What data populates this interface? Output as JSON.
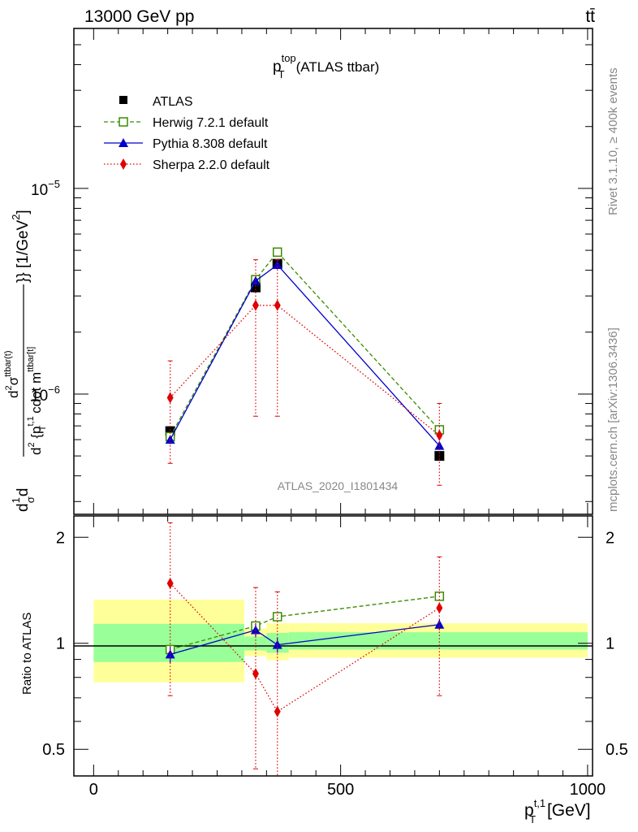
{
  "header": {
    "energy_label": "13000 GeV pp",
    "process_label": "tt̄"
  },
  "side_labels": {
    "rivet": "Rivet 3.1.10, ≥ 400k events",
    "mcplots": "mcplots.cern.ch [arXiv:1306.3436]"
  },
  "chart_data": [
    {
      "type": "line",
      "title_main": "p",
      "title_sup": "top",
      "title_sub": "T",
      "title_suffix": "(ATLAS ttbar)",
      "watermark": "ATLAS_2020_I1801434",
      "ylabel": "d1dσdσd²σ^{ttbar(t)} / d² {p_T^{t,1} cdot m^{ttbar[t]}} [1/GeV²]",
      "ylabel_parts": {
        "d1": "d",
        "frac_num": "1",
        "frac_den": "σ",
        "d2": "d",
        "num": "d",
        "num_sup": "2",
        "num_sigma": "σ",
        "num_sigma_sup": "ttbar(t)",
        "den": "d",
        "den_sup": "2",
        "den_body": " {p",
        "den_pt_sup": "t,1",
        "den_pt_sub": "T",
        "den_tail": " cdot m",
        "den_m_sup": "ttbar[t]",
        "den_close": "}}",
        "unit": " [1/GeV",
        "unit_sup": "2",
        "unit_close": "]"
      },
      "y_scale": "log",
      "ylim": [
        2.6e-07,
        6e-05
      ],
      "xlim": [
        -40,
        1010
      ],
      "y_tick_labels": [
        {
          "value": 1e-06,
          "base": "10",
          "exp": "−6"
        },
        {
          "value": 1e-05,
          "base": "10",
          "exp": "−5"
        }
      ],
      "legend_position": "top-left",
      "series": [
        {
          "name": "ATLAS",
          "color": "#000000",
          "marker": "square-filled",
          "line": "none",
          "x": [
            155,
            328,
            372,
            700
          ],
          "y": [
            6.6e-07,
            3.3e-06,
            4.3e-06,
            5e-07
          ],
          "yerr_low": [
            2e-08,
            1.5e-07,
            2e-07,
            2e-08
          ],
          "yerr_high": [
            2e-08,
            1.5e-07,
            2e-07,
            2e-08
          ]
        },
        {
          "name": "Herwig 7.2.1 default",
          "color": "#3c8c00",
          "marker": "square-open",
          "line": "dashed",
          "x": [
            155,
            328,
            372,
            700
          ],
          "y": [
            6.2e-07,
            3.6e-06,
            4.9e-06,
            6.7e-07
          ],
          "yerr_low": [
            1e-08,
            1e-07,
            2e-07,
            1e-08
          ],
          "yerr_high": [
            1e-08,
            1e-07,
            2e-07,
            1e-08
          ]
        },
        {
          "name": "Pythia 8.308 default",
          "color": "#0000cc",
          "marker": "triangle",
          "line": "solid",
          "x": [
            155,
            328,
            372,
            700
          ],
          "y": [
            6e-07,
            3.55e-06,
            4.25e-06,
            5.6e-07
          ],
          "yerr_low": [
            3e-08,
            1.5e-07,
            2e-07,
            2e-08
          ],
          "yerr_high": [
            3e-08,
            1.5e-07,
            2e-07,
            2e-08
          ]
        },
        {
          "name": "Sherpa 2.2.0 default",
          "color": "#e00000",
          "marker": "diamond",
          "line": "dotted",
          "x": [
            155,
            328,
            372,
            700
          ],
          "y": [
            9.6e-07,
            2.7e-06,
            2.7e-06,
            6.3e-07
          ],
          "yerr_low": [
            5e-07,
            1.92e-06,
            1.92e-06,
            2.7e-07
          ],
          "yerr_high": [
            4.9e-07,
            1.8e-06,
            1.8e-06,
            2.7e-07
          ]
        }
      ]
    },
    {
      "type": "line",
      "ylabel": "Ratio to ATLAS",
      "xlabel_base": "p",
      "xlabel_sup": "t,1",
      "xlabel_sub": "T",
      "xlabel_unit": " [GeV]",
      "y_scale": "log",
      "ylim": [
        0.42,
        2.3
      ],
      "xlim": [
        -40,
        1010
      ],
      "x_tick_labels": [
        {
          "value": 0,
          "label": "0"
        },
        {
          "value": 500,
          "label": "500"
        },
        {
          "value": 1000,
          "label": "1000"
        }
      ],
      "y_tick_labels": [
        {
          "value": 0.5,
          "label": "0.5"
        },
        {
          "value": 1,
          "label": "1"
        },
        {
          "value": 2,
          "label": "2"
        }
      ],
      "bands": [
        {
          "x0": 0,
          "x1": 305,
          "stat_lo": 0.885,
          "stat_hi": 1.135,
          "tot_lo": 0.775,
          "tot_hi": 1.33
        },
        {
          "x0": 305,
          "x1": 350,
          "stat_lo": 0.955,
          "stat_hi": 1.045,
          "tot_lo": 0.92,
          "tot_hi": 1.1
        },
        {
          "x0": 350,
          "x1": 395,
          "stat_lo": 0.94,
          "stat_hi": 1.07,
          "tot_lo": 0.895,
          "tot_hi": 1.14
        },
        {
          "x0": 395,
          "x1": 1000,
          "stat_lo": 0.96,
          "stat_hi": 1.075,
          "tot_lo": 0.91,
          "tot_hi": 1.14
        }
      ],
      "series": [
        {
          "name": "Herwig 7.2.1 default",
          "color": "#3c8c00",
          "marker": "square-open",
          "line": "dashed",
          "x": [
            155,
            328,
            372,
            700
          ],
          "y": [
            0.96,
            1.12,
            1.19,
            1.36
          ],
          "yerr_low": [
            0.02,
            0.03,
            0.04,
            0.03
          ],
          "yerr_high": [
            0.02,
            0.03,
            0.04,
            0.03
          ]
        },
        {
          "name": "Pythia 8.308 default",
          "color": "#0000cc",
          "marker": "triangle",
          "line": "solid",
          "x": [
            155,
            328,
            372,
            700
          ],
          "y": [
            0.93,
            1.09,
            0.99,
            1.13
          ],
          "yerr_low": [
            0.05,
            0.05,
            0.05,
            0.04
          ],
          "yerr_high": [
            0.05,
            0.05,
            0.05,
            0.04
          ]
        },
        {
          "name": "Sherpa 2.2.0 default",
          "color": "#e00000",
          "marker": "diamond",
          "line": "dotted",
          "x": [
            155,
            328,
            372,
            700
          ],
          "y": [
            1.48,
            0.82,
            0.64,
            1.26
          ],
          "yerr_low": [
            0.77,
            0.38,
            0.28,
            0.55
          ],
          "yerr_high": [
            0.72,
            0.62,
            0.76,
            0.5
          ]
        }
      ]
    }
  ]
}
